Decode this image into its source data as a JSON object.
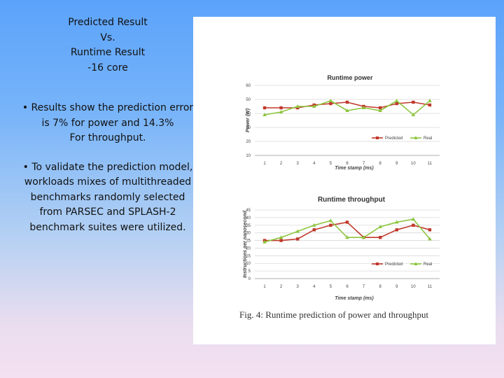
{
  "slide": {
    "title_lines": [
      "Predicted Result",
      "Vs.",
      "Runtime Result",
      "-16 core"
    ],
    "bullet1": "• Results show the prediction error is 7% for power and 14.3%",
    "bullet1_tail": "For throughput.",
    "bullet2": "• To validate the prediction model, workloads mixes of multithreaded benchmarks randomly  selected from PARSEC and SPLASH-2 benchmark suites were utilized."
  },
  "figure": {
    "caption": "Fig. 4: Runtime prediction of power and throughput"
  },
  "colors": {
    "predicted": "#c0392b",
    "real": "#8dc63f",
    "grid": "#d9d9d9"
  },
  "chart_data": [
    {
      "type": "line",
      "title": "Runtime power",
      "xlabel": "Time stamp (ms)",
      "ylabel": "Power (W)",
      "categories": [
        "1",
        "2",
        "3",
        "4",
        "5",
        "6",
        "7",
        "8",
        "9",
        "10",
        "11"
      ],
      "yticks": [
        "10",
        "20",
        "30",
        "40",
        "50",
        "60"
      ],
      "ylim": [
        10,
        60
      ],
      "legend": "bottom-right",
      "series": [
        {
          "name": "Predicted",
          "values": [
            44,
            44,
            44,
            46,
            47,
            48,
            45,
            44,
            47,
            48,
            46
          ]
        },
        {
          "name": "Real",
          "values": [
            39,
            41,
            45,
            45,
            49,
            42,
            44,
            42,
            49,
            39,
            49
          ]
        }
      ]
    },
    {
      "type": "line",
      "title": "Runtime throughput",
      "xlabel": "Time stamp (ms)",
      "ylabel": "Instructions per nanosecond",
      "categories": [
        "1",
        "2",
        "3",
        "4",
        "5",
        "6",
        "7",
        "8",
        "9",
        "10",
        "11"
      ],
      "yticks": [
        "0",
        "5",
        "10",
        "15",
        "20",
        "25",
        "30",
        "35",
        "40",
        "45"
      ],
      "ylim": [
        0,
        45
      ],
      "legend": "bottom-right",
      "series": [
        {
          "name": "Predicted",
          "values": [
            25,
            25,
            26,
            32,
            35,
            37,
            27,
            27,
            32,
            35,
            32
          ]
        },
        {
          "name": "Real",
          "values": [
            24,
            27,
            31,
            35,
            38,
            27,
            27,
            34,
            37,
            39,
            26
          ]
        }
      ]
    }
  ]
}
